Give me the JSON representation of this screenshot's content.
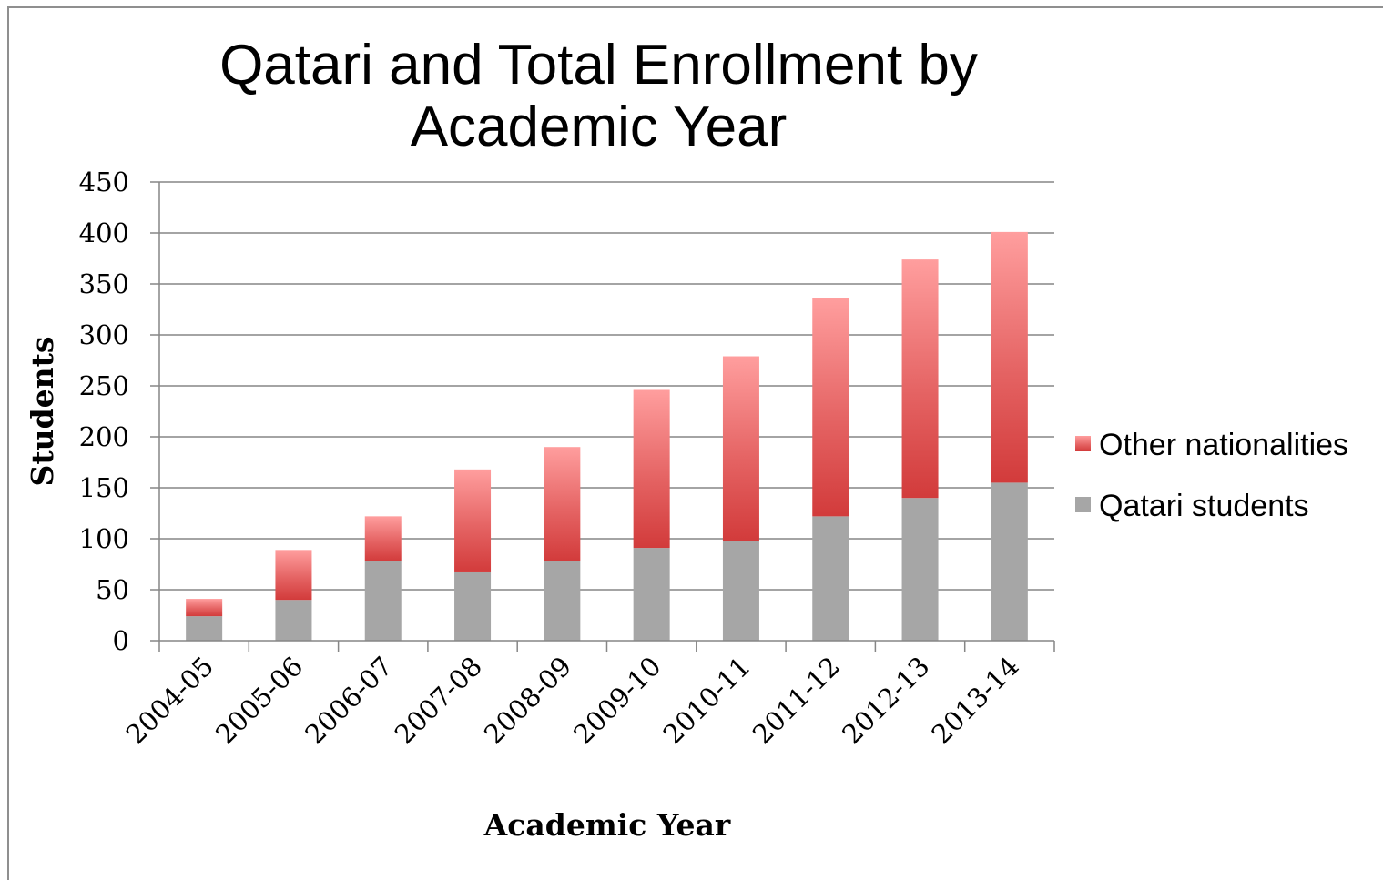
{
  "chart_data": {
    "type": "bar",
    "stacked": true,
    "title": "Qatari and Total Enrollment by Academic Year",
    "xlabel": "Academic Year",
    "ylabel": "Students",
    "ylim": [
      0,
      450
    ],
    "yticks": [
      0,
      50,
      100,
      150,
      200,
      250,
      300,
      350,
      400,
      450
    ],
    "grid": true,
    "legend_position": "right",
    "categories": [
      "2004-05",
      "2005-06",
      "2006-07",
      "2007-08",
      "2008-09",
      "2009-10",
      "2010-11",
      "2011-12",
      "2012-13",
      "2013-14"
    ],
    "series": [
      {
        "name": "Qatari students",
        "color": "#a6a6a6",
        "values": [
          24,
          40,
          78,
          67,
          78,
          91,
          98,
          122,
          140,
          155
        ]
      },
      {
        "name": "Other nationalities",
        "color": "#d94848",
        "color_light": "#ff9a9a",
        "values": [
          17,
          49,
          44,
          101,
          112,
          155,
          181,
          214,
          234,
          246
        ]
      }
    ],
    "legend": [
      "Other nationalities",
      "Qatari students"
    ]
  }
}
